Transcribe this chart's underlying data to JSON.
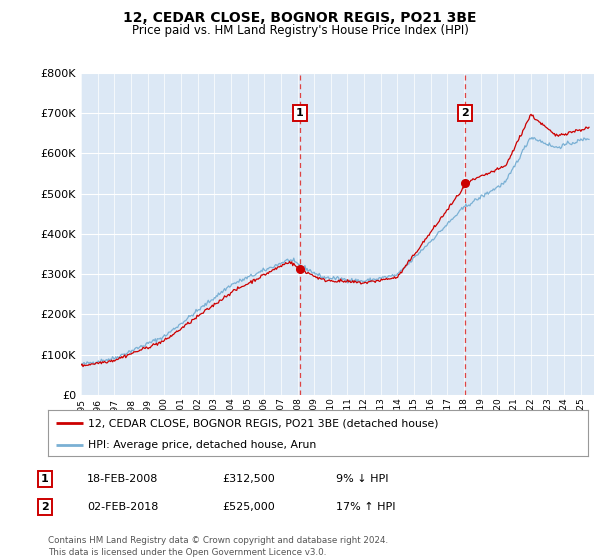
{
  "title": "12, CEDAR CLOSE, BOGNOR REGIS, PO21 3BE",
  "subtitle": "Price paid vs. HM Land Registry's House Price Index (HPI)",
  "ylim": [
    0,
    800000
  ],
  "xlim_start": 1995.0,
  "xlim_end": 2025.8,
  "sale1_date": 2008.12,
  "sale1_price": 312500,
  "sale2_date": 2018.08,
  "sale2_price": 525000,
  "line1_color": "#cc0000",
  "line2_color": "#7ab0d4",
  "vline_color": "#dd4444",
  "background_color": "#dce8f5",
  "grid_color": "#ffffff",
  "legend_line1": "12, CEDAR CLOSE, BOGNOR REGIS, PO21 3BE (detached house)",
  "legend_line2": "HPI: Average price, detached house, Arun",
  "table_data": [
    [
      "1",
      "18-FEB-2008",
      "£312,500",
      "9% ↓ HPI"
    ],
    [
      "2",
      "02-FEB-2018",
      "£525,000",
      "17% ↑ HPI"
    ]
  ],
  "footer": "Contains HM Land Registry data © Crown copyright and database right 2024.\nThis data is licensed under the Open Government Licence v3.0."
}
